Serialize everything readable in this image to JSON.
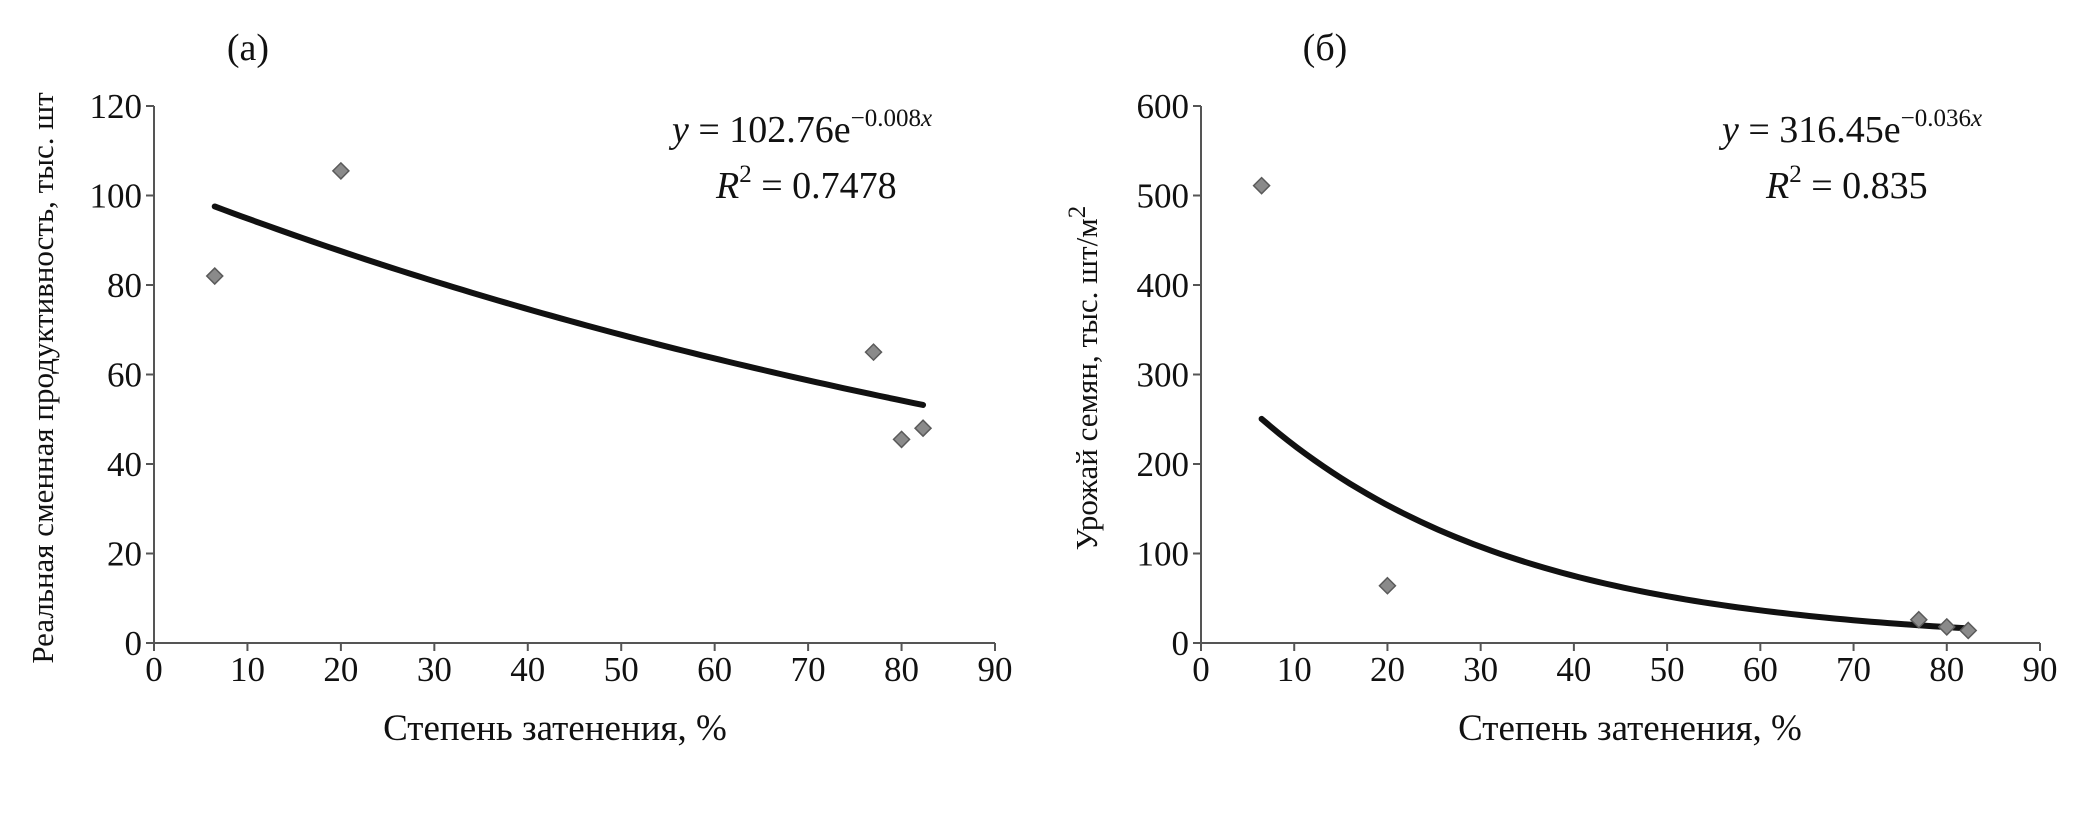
{
  "chart_data": [
    {
      "type": "scatter",
      "panel_label": "(а)",
      "xlabel": "Степень затенения, %",
      "ylabel": "Реальная сменная продуктивность, тыс. шт",
      "xlim": [
        0,
        90
      ],
      "ylim": [
        0,
        120
      ],
      "x_ticks": [
        "0",
        "10",
        "20",
        "30",
        "40",
        "50",
        "60",
        "70",
        "80",
        "90"
      ],
      "y_ticks": [
        "0",
        "20",
        "40",
        "60",
        "80",
        "100",
        "120"
      ],
      "points": [
        {
          "x": 6.5,
          "y": 82
        },
        {
          "x": 20,
          "y": 105.5
        },
        {
          "x": 77,
          "y": 65
        },
        {
          "x": 80,
          "y": 45.5
        },
        {
          "x": 82.3,
          "y": 48
        }
      ],
      "trendline": {
        "type": "exponential",
        "a": 102.76,
        "b": -0.008,
        "x_from": 6.5,
        "x_to": 82.3
      },
      "equation": {
        "y_var": "y",
        "equals_coef": " = 102.76e",
        "exponent": "−0.008",
        "exp_var": "x"
      },
      "r2": {
        "var": "R",
        "sup": "2",
        "value": " = 0.7478"
      }
    },
    {
      "type": "scatter",
      "panel_label": "(б)",
      "xlabel": "Степень затенения, %",
      "ylabel": "Урожай семян, тыс. шт/м",
      "ylabel_sup": "2",
      "xlim": [
        0,
        90
      ],
      "ylim": [
        0,
        600
      ],
      "x_ticks": [
        "0",
        "10",
        "20",
        "30",
        "40",
        "50",
        "60",
        "70",
        "80",
        "90"
      ],
      "y_ticks": [
        "0",
        "100",
        "200",
        "300",
        "400",
        "500",
        "600"
      ],
      "points": [
        {
          "x": 6.5,
          "y": 511
        },
        {
          "x": 20,
          "y": 64
        },
        {
          "x": 77,
          "y": 26
        },
        {
          "x": 80,
          "y": 18
        },
        {
          "x": 82.3,
          "y": 14
        }
      ],
      "trendline": {
        "type": "exponential",
        "a": 316.45,
        "b": -0.036,
        "x_from": 6.5,
        "x_to": 82.3
      },
      "equation": {
        "y_var": "y",
        "equals_coef": " = 316.45e",
        "exponent": "−0.036",
        "exp_var": "x"
      },
      "r2": {
        "var": "R",
        "sup": "2",
        "value": " = 0.835"
      }
    }
  ],
  "colors": {
    "marker_fill": "#8a8a8a",
    "marker_stroke": "#5a5a5a",
    "trendline": "#111111",
    "axis": "#555555"
  }
}
